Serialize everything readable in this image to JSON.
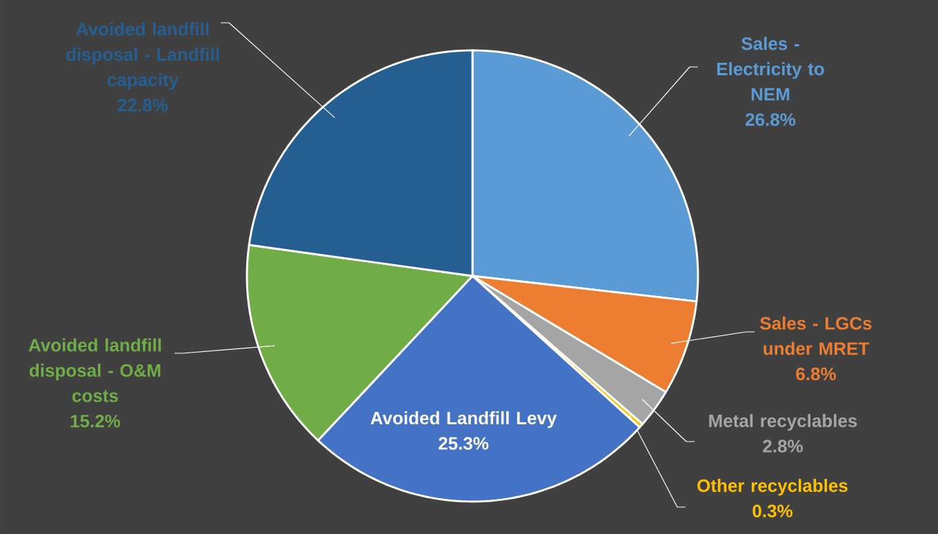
{
  "chart_data": {
    "type": "pie",
    "categories": [
      "Sales - Electricity to NEM",
      "Sales - LGCs under MRET",
      "Metal recyclables",
      "Other recyclables",
      "Avoided Landfill Levy",
      "Avoided landfill disposal - O&M costs",
      "Avoided landfill disposal - Landfill capacity"
    ],
    "values": [
      26.8,
      6.8,
      2.8,
      0.3,
      25.3,
      15.2,
      22.8
    ],
    "colors": [
      "#5b9bd5",
      "#ed7d31",
      "#a5a5a5",
      "#ffc000",
      "#4472c4",
      "#70ad47",
      "#255e91"
    ],
    "value_labels": [
      "26.8%",
      "6.8%",
      "2.8%",
      "0.3%",
      "25.3%",
      "15.2%",
      "22.8%"
    ]
  }
}
